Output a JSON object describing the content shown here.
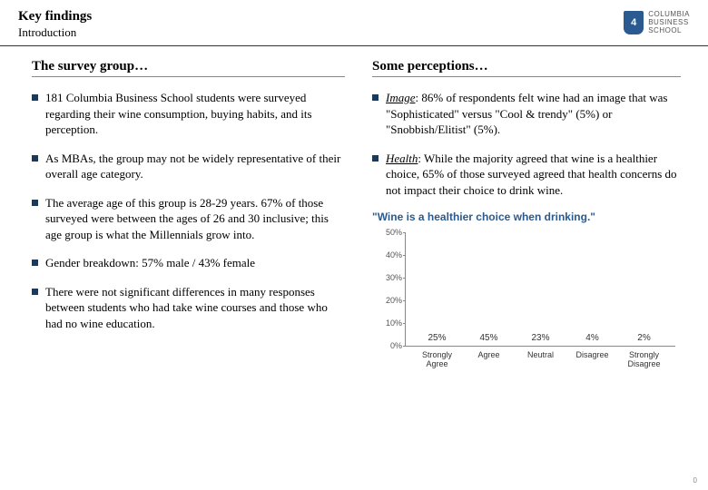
{
  "header": {
    "title": "Key findings",
    "subtitle": "Introduction"
  },
  "logo": {
    "shield_text": "4",
    "line1": "COLUMBIA",
    "line2": "BUSINESS",
    "line3": "SCHOOL"
  },
  "left": {
    "heading": "The survey group…",
    "items": [
      "181 Columbia Business School students were surveyed regarding their wine consumption, buying habits, and its perception.",
      "As MBAs, the group may not be widely representative of their overall age category.",
      "The average age of this group is 28-29 years. 67% of those surveyed were between the ages of 26 and 30 inclusive; this age group is what the Millennials grow into.",
      "Gender breakdown: 57% male / 43% female",
      "There were not significant differences in many responses between students who had take wine courses and those who had no wine education."
    ]
  },
  "right": {
    "heading": "Some perceptions…",
    "items": [
      {
        "lead": "Image",
        "body": ": 86% of respondents felt wine had an image that was \"Sophisticated\" versus \"Cool & trendy\" (5%)  or \"Snobbish/Elitist\" (5%)."
      },
      {
        "lead": "Health",
        "body": ": While the majority agreed that wine is a healthier choice, 65% of those surveyed agreed that health concerns do not impact their choice to drink wine."
      }
    ]
  },
  "chart": {
    "title": "\"Wine is a healthier choice when drinking.\"",
    "ymax": 50,
    "ytick_step": 10,
    "colors": {
      "orange": "#ec8b3c",
      "blue": "#7b96b8"
    },
    "bars": [
      {
        "cat": "Strongly Agree",
        "val": 25,
        "color": "orange",
        "label": "25%"
      },
      {
        "cat": "Agree",
        "val": 45,
        "color": "orange",
        "label": "45%"
      },
      {
        "cat": "Neutral",
        "val": 23,
        "color": "blue",
        "label": "23%"
      },
      {
        "cat": "Disagree",
        "val": 4,
        "color": "blue",
        "label": "4%"
      },
      {
        "cat": "Strongly Disagree",
        "val": 2,
        "color": "blue",
        "label": "2%"
      }
    ]
  },
  "page_number": "0"
}
